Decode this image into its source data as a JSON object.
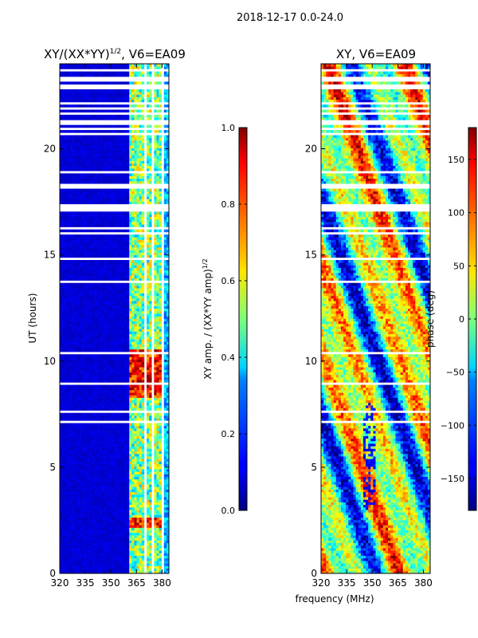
{
  "suptitle": "2018-12-17 0.0-24.0",
  "shared_xlabel": "frequency (MHz)",
  "ylabel": "UT (hours)",
  "chart_data": [
    {
      "type": "heatmap",
      "title_main": "XY/(XX*YY)",
      "title_sup": "1/2",
      "title_suffix": ", V6=EA09",
      "x_ticks": [
        320,
        335,
        350,
        365,
        380
      ],
      "xlim": [
        320,
        384
      ],
      "y_ticks": [
        0,
        5,
        10,
        15,
        20
      ],
      "ylim": [
        0,
        24
      ],
      "colorbar": {
        "label_main": "XY amp. / (XX*YY amp)",
        "label_sup": "1/2",
        "range": [
          0.0,
          1.0
        ],
        "ticks": [
          "0.0",
          "0.2",
          "0.4",
          "0.6",
          "0.8",
          "1.0"
        ],
        "tick_values": [
          0.0,
          0.2,
          0.4,
          0.6,
          0.8,
          1.0
        ]
      },
      "colormap": "jet",
      "description": "normalized amplitude per frequency channel and time"
    },
    {
      "type": "heatmap",
      "title": "XY, V6=EA09",
      "x_ticks": [
        320,
        335,
        350,
        365,
        380
      ],
      "xlim": [
        320,
        384
      ],
      "y_ticks": [
        0,
        5,
        10,
        15,
        20
      ],
      "ylim": [
        0,
        24
      ],
      "colorbar": {
        "label": "phase (deg)",
        "range": [
          -180,
          180
        ],
        "ticks": [
          "150",
          "100",
          "50",
          "0",
          "−50",
          "−100",
          "−150"
        ],
        "tick_values": [
          150,
          100,
          50,
          0,
          -50,
          -100,
          -150
        ]
      },
      "colormap": "jet",
      "description": "phase per frequency channel and time"
    }
  ]
}
